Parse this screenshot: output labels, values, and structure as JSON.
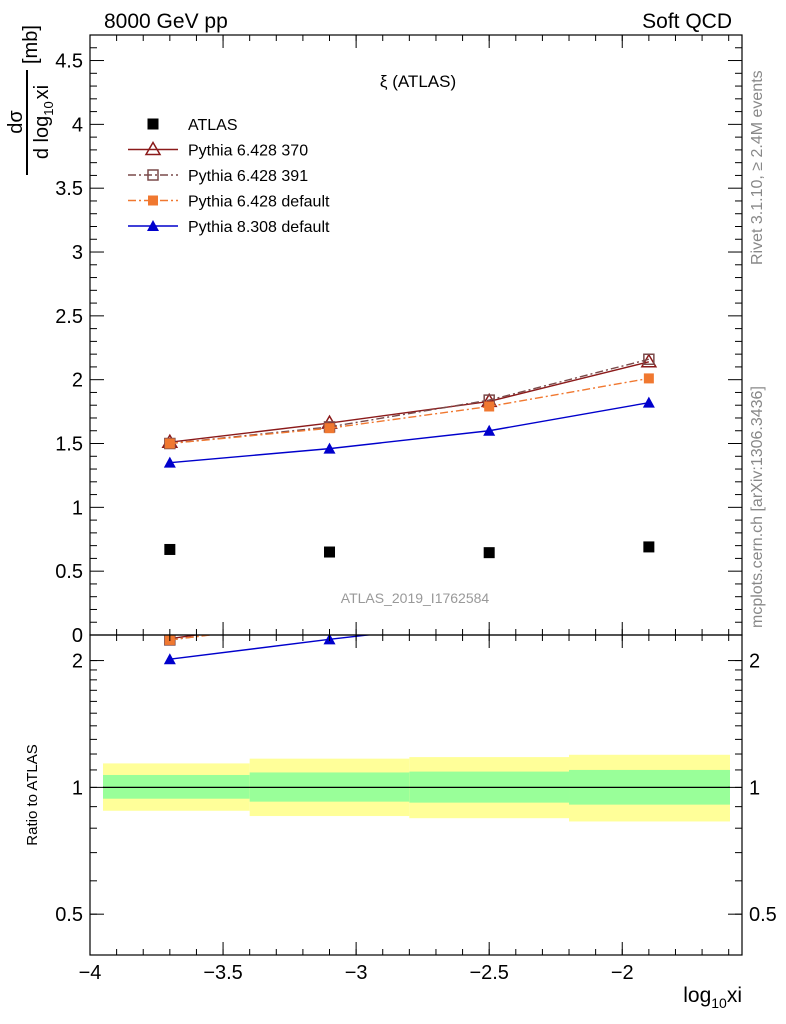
{
  "header": {
    "left": "8000 GeV pp",
    "right": "Soft QCD"
  },
  "side_text": {
    "rivet": "Rivet 3.1.10, ≥ 2.4M events",
    "site": "mcplots.cern.ch [arXiv:1306.3436]"
  },
  "chart_data": {
    "type": "line",
    "title": "ξ (ATLAS)",
    "analysis_label": "ATLAS_2019_I1762584",
    "xlabel": "log",
    "xlabel_sub": "10",
    "xlabel_tail": "xi",
    "ylabel": {
      "num": "dσ",
      "den_pre": "d log",
      "den_sub": "10",
      "den_post": "xi",
      "unit": "[mb]"
    },
    "ratio_ylabel": "Ratio to ATLAS",
    "xlim": [
      -4.0,
      -1.55
    ],
    "ylim": [
      0,
      4.7
    ],
    "ratio_ylim": [
      0.4,
      2.3
    ],
    "ratio_scale": "log",
    "x_ticks": [
      {
        "v": -4.0,
        "label": "−4"
      },
      {
        "v": -3.5,
        "label": "−3.5"
      },
      {
        "v": -3.0,
        "label": "−3"
      },
      {
        "v": -2.5,
        "label": "−2.5"
      },
      {
        "v": -2.0,
        "label": "−2"
      }
    ],
    "y_ticks": [
      {
        "v": 0,
        "label": "0"
      },
      {
        "v": 0.5,
        "label": "0.5"
      },
      {
        "v": 1,
        "label": "1"
      },
      {
        "v": 1.5,
        "label": "1.5"
      },
      {
        "v": 2,
        "label": "2"
      },
      {
        "v": 2.5,
        "label": "2.5"
      },
      {
        "v": 3,
        "label": "3"
      },
      {
        "v": 3.5,
        "label": "3.5"
      },
      {
        "v": 4,
        "label": "4"
      },
      {
        "v": 4.5,
        "label": "4.5"
      }
    ],
    "ratio_ticks": [
      {
        "v": 0.5,
        "label": "0.5"
      },
      {
        "v": 1,
        "label": "1"
      },
      {
        "v": 2,
        "label": "2"
      }
    ],
    "legend_position": "top-left",
    "x": [
      -3.7,
      -3.1,
      -2.5,
      -1.9
    ],
    "bin_edges": [
      -4.0,
      -3.4,
      -2.8,
      -2.2,
      -1.6
    ],
    "data": {
      "name": "ATLAS",
      "values": [
        0.67,
        0.65,
        0.645,
        0.69
      ],
      "color": "#000000"
    },
    "series": [
      {
        "name": "Pythia 6.428 370",
        "values": [
          1.51,
          1.66,
          1.83,
          2.14
        ],
        "color": "#8b1a1a",
        "marker": "triangle-open",
        "dash": ""
      },
      {
        "name": "Pythia 6.428 391",
        "values": [
          1.5,
          1.63,
          1.84,
          2.16
        ],
        "color": "#7a4a4a",
        "marker": "square-open",
        "dash": "8,3,2,3"
      },
      {
        "name": "Pythia 6.428 default",
        "values": [
          1.5,
          1.62,
          1.79,
          2.01
        ],
        "color": "#f07830",
        "marker": "square-filled",
        "dash": "8,3,2,3"
      },
      {
        "name": "Pythia 8.308 default",
        "values": [
          1.35,
          1.46,
          1.6,
          1.82
        ],
        "color": "#0000cc",
        "marker": "triangle-filled",
        "dash": ""
      }
    ],
    "ratio_bands": {
      "inner_color": "#99ff99",
      "outer_color": "#ffff99",
      "inner": [
        [
          0.94,
          1.07
        ],
        [
          0.925,
          1.085
        ],
        [
          0.92,
          1.09
        ],
        [
          0.91,
          1.1
        ]
      ],
      "outer": [
        [
          0.88,
          1.14
        ],
        [
          0.855,
          1.17
        ],
        [
          0.845,
          1.18
        ],
        [
          0.83,
          1.195
        ]
      ]
    }
  }
}
